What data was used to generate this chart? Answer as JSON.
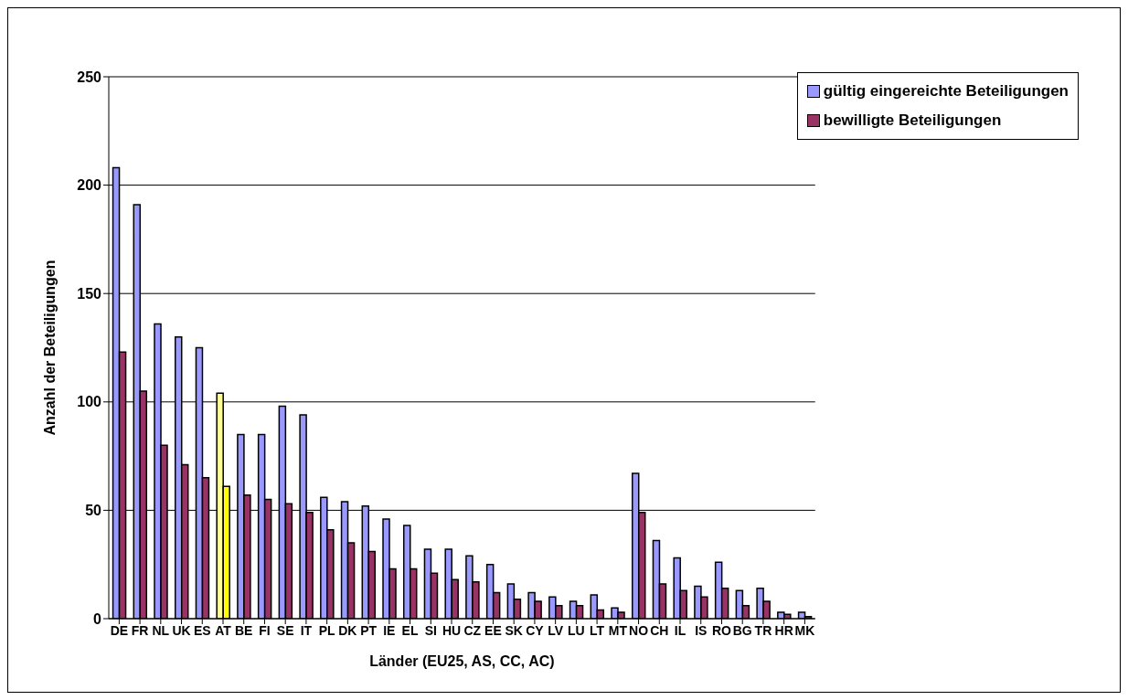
{
  "chart_data": {
    "type": "bar",
    "xlabel": "Länder (EU25, AS, CC, AC)",
    "ylabel": "Anzahl der Beteiligungen",
    "categories": [
      "DE",
      "FR",
      "NL",
      "UK",
      "ES",
      "AT",
      "BE",
      "FI",
      "SE",
      "IT",
      "PL",
      "DK",
      "PT",
      "IE",
      "EL",
      "SI",
      "HU",
      "CZ",
      "EE",
      "SK",
      "CY",
      "LV",
      "LU",
      "LT",
      "MT",
      "NO",
      "CH",
      "IL",
      "IS",
      "RO",
      "BG",
      "TR",
      "HR",
      "MK"
    ],
    "series": [
      {
        "name": "gültig eingereichte Beteiligungen",
        "color": "#9999ff",
        "colors": [
          "#9999ff",
          "#9999ff",
          "#9999ff",
          "#9999ff",
          "#9999ff",
          "#ffff99",
          "#9999ff",
          "#9999ff",
          "#9999ff",
          "#9999ff",
          "#9999ff",
          "#9999ff",
          "#9999ff",
          "#9999ff",
          "#9999ff",
          "#9999ff",
          "#9999ff",
          "#9999ff",
          "#9999ff",
          "#9999ff",
          "#9999ff",
          "#9999ff",
          "#9999ff",
          "#9999ff",
          "#9999ff",
          "#9999ff",
          "#9999ff",
          "#9999ff",
          "#9999ff",
          "#9999ff",
          "#9999ff",
          "#9999ff",
          "#9999ff",
          "#9999ff"
        ],
        "values": [
          208,
          191,
          136,
          130,
          125,
          104,
          85,
          85,
          98,
          94,
          56,
          54,
          52,
          46,
          43,
          32,
          32,
          29,
          25,
          16,
          12,
          10,
          8,
          11,
          5,
          67,
          36,
          28,
          15,
          26,
          13,
          14,
          3,
          3
        ]
      },
      {
        "name": "bewilligte Beteiligungen",
        "color": "#993366",
        "colors": [
          "#993366",
          "#993366",
          "#993366",
          "#993366",
          "#993366",
          "#ffff00",
          "#993366",
          "#993366",
          "#993366",
          "#993366",
          "#993366",
          "#993366",
          "#993366",
          "#993366",
          "#993366",
          "#993366",
          "#993366",
          "#993366",
          "#993366",
          "#993366",
          "#993366",
          "#993366",
          "#993366",
          "#993366",
          "#993366",
          "#993366",
          "#993366",
          "#993366",
          "#993366",
          "#993366",
          "#993366",
          "#993366",
          "#993366",
          "#993366"
        ],
        "values": [
          123,
          105,
          80,
          71,
          65,
          61,
          57,
          55,
          53,
          49,
          41,
          35,
          31,
          23,
          23,
          21,
          18,
          17,
          12,
          9,
          8,
          6,
          6,
          4,
          3,
          49,
          16,
          13,
          10,
          14,
          6,
          8,
          2,
          1
        ]
      }
    ],
    "ylim": [
      0,
      250
    ],
    "yticks": [
      0,
      50,
      100,
      150,
      200,
      250
    ],
    "grid": "y",
    "legend": "top right"
  }
}
